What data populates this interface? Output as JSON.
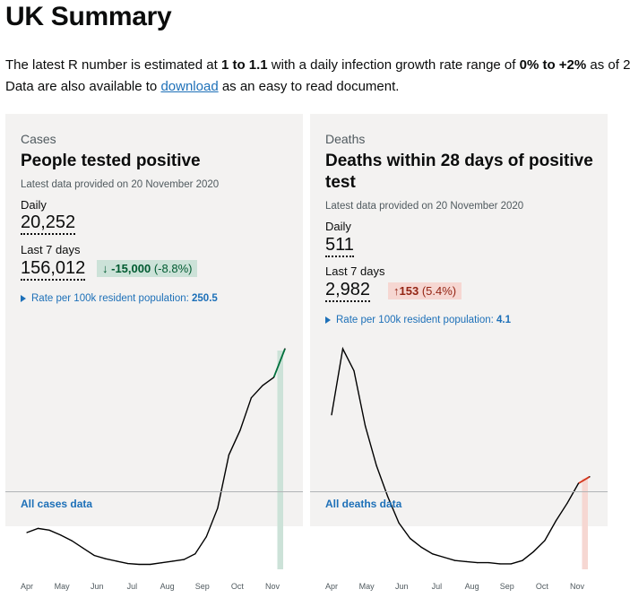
{
  "page": {
    "title": "UK Summary",
    "intro": {
      "p1_a": "The latest R number is estimated at ",
      "p1_b": "1 to 1.1",
      "p1_c": " with a daily infection growth rate range of ",
      "p1_d": "0% to +2%",
      "p1_e": " as of 2",
      "p2_a": "Data are also available to ",
      "p2_link": "download",
      "p2_b": " as an easy to read document."
    }
  },
  "cases": {
    "caption": "Cases",
    "heading": "People tested positive",
    "latest": "Latest data provided on 20 November 2020",
    "daily_label": "Daily",
    "daily_value": "20,252",
    "week_label": "Last 7 days",
    "week_value": "156,012",
    "change_value": "-15,000",
    "change_pct": "(-8.8%)",
    "rate_label": "Rate per 100k resident population: ",
    "rate_value": "250.5",
    "all_data": "All cases data"
  },
  "deaths": {
    "caption": "Deaths",
    "heading_line1": "Deaths within 28 days of positive",
    "heading_line2": "test",
    "latest": "Latest data provided on 20 November 2020",
    "daily_label": "Daily",
    "daily_value": "511",
    "week_label": "Last 7 days",
    "week_value": "2,982",
    "change_value": "153",
    "change_pct": "(5.4%)",
    "rate_label": "Rate per 100k resident population: ",
    "rate_value": "4.1",
    "all_data": "All deaths data"
  },
  "chart_data": [
    {
      "type": "line",
      "x_ticks": [
        "Apr",
        "May",
        "Jun",
        "Jul",
        "Aug",
        "Sep",
        "Oct",
        "Nov"
      ],
      "x": [
        "Apr",
        "Apr",
        "Apr",
        "May",
        "May",
        "May",
        "Jun",
        "Jun",
        "Jun",
        "Jul",
        "Jul",
        "Jul",
        "Aug",
        "Aug",
        "Aug",
        "Sep",
        "Sep",
        "Sep",
        "Oct",
        "Oct",
        "Oct",
        "Nov",
        "Nov",
        "Nov"
      ],
      "values": [
        4500,
        5000,
        4800,
        4200,
        3500,
        2600,
        1700,
        1300,
        1000,
        700,
        600,
        600,
        800,
        1000,
        1200,
        1900,
        4000,
        7500,
        14000,
        17000,
        21000,
        22500,
        23500,
        27000
      ],
      "color": "#000000",
      "highlight_color": "#00703c",
      "highlight_fill": "#cce2d8"
    },
    {
      "type": "line",
      "x_ticks": [
        "Apr",
        "May",
        "Jun",
        "Jul",
        "Aug",
        "Sep",
        "Oct",
        "Nov"
      ],
      "x": [
        "Apr",
        "Apr",
        "Apr",
        "May",
        "May",
        "May",
        "Jun",
        "Jun",
        "Jun",
        "Jul",
        "Jul",
        "Jul",
        "Aug",
        "Aug",
        "Aug",
        "Sep",
        "Sep",
        "Sep",
        "Oct",
        "Oct",
        "Oct",
        "Nov",
        "Nov",
        "Nov"
      ],
      "values": [
        700,
        1000,
        900,
        650,
        470,
        330,
        210,
        140,
        100,
        70,
        55,
        40,
        35,
        30,
        30,
        25,
        25,
        40,
        80,
        130,
        220,
        300,
        390,
        420
      ],
      "color": "#000000",
      "highlight_color": "#d4351c",
      "highlight_fill": "#f6d7d2"
    }
  ]
}
